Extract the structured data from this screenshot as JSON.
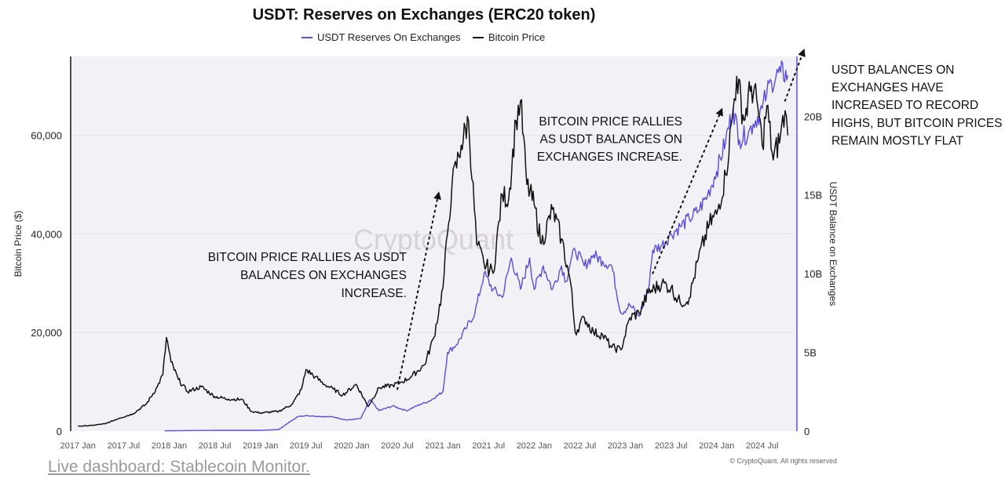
{
  "chart_data": {
    "type": "line",
    "title": "USDT: Reserves on Exchanges (ERC20 token)",
    "watermark": "CryptoQuant",
    "copyright": "© CryptoQuant. All rights reserved",
    "legend": {
      "placement": "top-center",
      "items": [
        {
          "name": "USDT Reserves On Exchanges",
          "color": "#5b4fd6"
        },
        {
          "name": "Bitcoin Price",
          "color": "#111111"
        }
      ]
    },
    "x_axis": {
      "ticks": [
        "2017 Jan",
        "2017 Jul",
        "2018 Jan",
        "2018 Jul",
        "2019 Jan",
        "2019 Jul",
        "2020 Jan",
        "2020 Jul",
        "2021 Jan",
        "2021 Jul",
        "2022 Jan",
        "2022 Jul",
        "2023 Jan",
        "2023 Jul",
        "2024 Jan",
        "2024 Jul"
      ],
      "range": [
        2016.92,
        2024.88
      ]
    },
    "y_left": {
      "label": "Bitcoin Price ($)",
      "ticks": [
        {
          "value": 0,
          "label": "0"
        },
        {
          "value": 20000,
          "label": "20,000"
        },
        {
          "value": 40000,
          "label": "40,000"
        },
        {
          "value": 60000,
          "label": "60,000"
        }
      ],
      "range": [
        0,
        76000
      ]
    },
    "y_right": {
      "label": "USDT Balance on Exchanges",
      "ticks": [
        {
          "value": 0,
          "label": "0"
        },
        {
          "value": 5,
          "label": "5B"
        },
        {
          "value": 10,
          "label": "10B"
        },
        {
          "value": 15,
          "label": "15B"
        },
        {
          "value": 20,
          "label": "20B"
        }
      ],
      "unit": "B",
      "range": [
        0,
        23.8
      ]
    },
    "series": [
      {
        "name": "Bitcoin Price",
        "axis": "left",
        "color": "#111111",
        "points": [
          [
            2017.0,
            1000
          ],
          [
            2017.15,
            1150
          ],
          [
            2017.3,
            1500
          ],
          [
            2017.45,
            2600
          ],
          [
            2017.6,
            3500
          ],
          [
            2017.75,
            5500
          ],
          [
            2017.87,
            9000
          ],
          [
            2017.93,
            11500
          ],
          [
            2017.97,
            19000
          ],
          [
            2018.02,
            14000
          ],
          [
            2018.1,
            10500
          ],
          [
            2018.2,
            8000
          ],
          [
            2018.35,
            9000
          ],
          [
            2018.5,
            7000
          ],
          [
            2018.65,
            6500
          ],
          [
            2018.8,
            6400
          ],
          [
            2018.9,
            4000
          ],
          [
            2019.0,
            3700
          ],
          [
            2019.2,
            4000
          ],
          [
            2019.35,
            5500
          ],
          [
            2019.45,
            8500
          ],
          [
            2019.5,
            12500
          ],
          [
            2019.6,
            11000
          ],
          [
            2019.7,
            9500
          ],
          [
            2019.8,
            8500
          ],
          [
            2019.9,
            7300
          ],
          [
            2020.05,
            9500
          ],
          [
            2020.18,
            5000
          ],
          [
            2020.3,
            8800
          ],
          [
            2020.45,
            9300
          ],
          [
            2020.55,
            10000
          ],
          [
            2020.65,
            11000
          ],
          [
            2020.8,
            13500
          ],
          [
            2020.9,
            19000
          ],
          [
            2021.0,
            29000
          ],
          [
            2021.05,
            40000
          ],
          [
            2021.1,
            50000
          ],
          [
            2021.2,
            58000
          ],
          [
            2021.28,
            63000
          ],
          [
            2021.37,
            38000
          ],
          [
            2021.45,
            34000
          ],
          [
            2021.55,
            32000
          ],
          [
            2021.65,
            48000
          ],
          [
            2021.72,
            47000
          ],
          [
            2021.8,
            63000
          ],
          [
            2021.85,
            67000
          ],
          [
            2021.92,
            50000
          ],
          [
            2022.0,
            46000
          ],
          [
            2022.08,
            38000
          ],
          [
            2022.2,
            45000
          ],
          [
            2022.3,
            39000
          ],
          [
            2022.4,
            30000
          ],
          [
            2022.45,
            20000
          ],
          [
            2022.55,
            23000
          ],
          [
            2022.65,
            20000
          ],
          [
            2022.75,
            19500
          ],
          [
            2022.85,
            17000
          ],
          [
            2022.95,
            16500
          ],
          [
            2023.05,
            23000
          ],
          [
            2023.15,
            24000
          ],
          [
            2023.25,
            28000
          ],
          [
            2023.4,
            30000
          ],
          [
            2023.5,
            29000
          ],
          [
            2023.6,
            26000
          ],
          [
            2023.7,
            27000
          ],
          [
            2023.8,
            35000
          ],
          [
            2023.92,
            42000
          ],
          [
            2024.0,
            44000
          ],
          [
            2024.1,
            52000
          ],
          [
            2024.18,
            65000
          ],
          [
            2024.22,
            72000
          ],
          [
            2024.3,
            63000
          ],
          [
            2024.38,
            70000
          ],
          [
            2024.45,
            66000
          ],
          [
            2024.5,
            58000
          ],
          [
            2024.55,
            66000
          ],
          [
            2024.62,
            55000
          ],
          [
            2024.7,
            60000
          ],
          [
            2024.75,
            65000
          ],
          [
            2024.78,
            60000
          ]
        ]
      },
      {
        "name": "USDT Reserves On Exchanges",
        "axis": "right",
        "color": "#5b4fd6",
        "points": [
          [
            2017.95,
            0.02
          ],
          [
            2018.5,
            0.05
          ],
          [
            2019.0,
            0.05
          ],
          [
            2019.2,
            0.1
          ],
          [
            2019.3,
            0.5
          ],
          [
            2019.4,
            0.9
          ],
          [
            2019.5,
            1.0
          ],
          [
            2019.6,
            0.95
          ],
          [
            2019.8,
            0.9
          ],
          [
            2019.95,
            0.7
          ],
          [
            2020.1,
            0.8
          ],
          [
            2020.2,
            2.0
          ],
          [
            2020.3,
            1.3
          ],
          [
            2020.45,
            1.6
          ],
          [
            2020.6,
            1.3
          ],
          [
            2020.75,
            1.7
          ],
          [
            2020.85,
            1.9
          ],
          [
            2021.0,
            2.5
          ],
          [
            2021.05,
            5.0
          ],
          [
            2021.15,
            5.5
          ],
          [
            2021.25,
            6.5
          ],
          [
            2021.35,
            7.5
          ],
          [
            2021.45,
            10.0
          ],
          [
            2021.55,
            9.0
          ],
          [
            2021.65,
            8.5
          ],
          [
            2021.75,
            11.0
          ],
          [
            2021.85,
            9.0
          ],
          [
            2021.95,
            11.0
          ],
          [
            2022.0,
            9.0
          ],
          [
            2022.1,
            10.5
          ],
          [
            2022.2,
            9.0
          ],
          [
            2022.3,
            10.5
          ],
          [
            2022.35,
            9.5
          ],
          [
            2022.4,
            10.8
          ],
          [
            2022.45,
            11.5
          ],
          [
            2022.55,
            10.5
          ],
          [
            2022.65,
            11.2
          ],
          [
            2022.75,
            10.8
          ],
          [
            2022.85,
            10.5
          ],
          [
            2022.95,
            7.5
          ],
          [
            2023.05,
            8.0
          ],
          [
            2023.15,
            7.3
          ],
          [
            2023.25,
            9.0
          ],
          [
            2023.3,
            11.5
          ],
          [
            2023.4,
            11.8
          ],
          [
            2023.5,
            12.5
          ],
          [
            2023.6,
            13.0
          ],
          [
            2023.7,
            13.5
          ],
          [
            2023.8,
            14.0
          ],
          [
            2023.9,
            15.0
          ],
          [
            2024.0,
            16.5
          ],
          [
            2024.1,
            18.5
          ],
          [
            2024.18,
            20.5
          ],
          [
            2024.25,
            18.5
          ],
          [
            2024.35,
            19.0
          ],
          [
            2024.4,
            19.5
          ],
          [
            2024.5,
            20.5
          ],
          [
            2024.55,
            21.5
          ],
          [
            2024.6,
            22.2
          ],
          [
            2024.7,
            22.8
          ],
          [
            2024.78,
            22.6
          ]
        ]
      }
    ],
    "annotations": [
      {
        "lines": [
          "BITCOIN PRICE RALLIES AS USDT",
          "BALANCES ON EXCHANGES",
          "INCREASE."
        ],
        "align": "end"
      },
      {
        "lines": [
          "BITCOIN PRICE RALLIES",
          "AS USDT BALANCES ON",
          "EXCHANGES INCREASE."
        ],
        "align": "end"
      },
      {
        "lines": [
          "USDT BALANCES ON",
          "EXCHANGES HAVE",
          "INCREASED TO RECORD",
          "HIGHS, BUT BITCOIN PRICES",
          "REMAIN MOSTLY FLAT"
        ],
        "align": "start"
      }
    ],
    "arrows": [
      {
        "from": [
          2020.5,
          8500
        ],
        "to": [
          2020.95,
          48000
        ]
      },
      {
        "from": [
          2023.3,
          32000
        ],
        "to": [
          2024.05,
          65000
        ]
      },
      {
        "from": [
          2024.75,
          67000
        ],
        "to": [
          2024.95,
          77000
        ]
      }
    ]
  },
  "footer": {
    "link_text": "Live dashboard: Stablecoin Monitor."
  }
}
